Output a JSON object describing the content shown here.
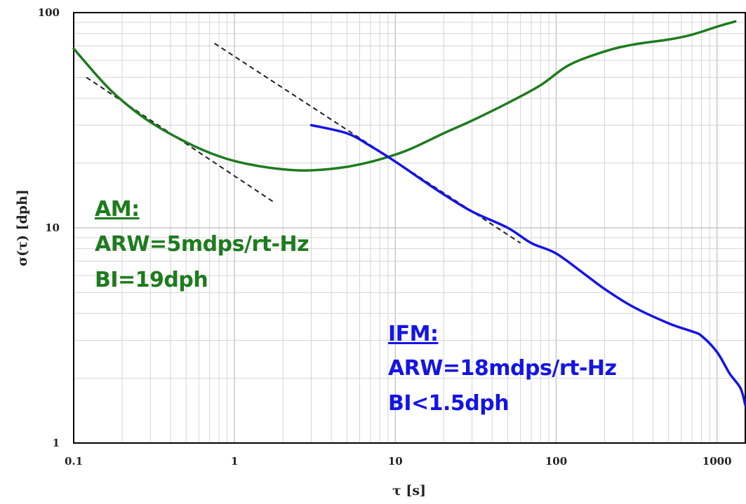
{
  "chart_data": {
    "type": "line",
    "title": "",
    "xlabel": "τ [s]",
    "ylabel": "σ(τ) [dph]",
    "x_scale": "log",
    "y_scale": "log",
    "xlim": [
      0.1,
      1500
    ],
    "ylim": [
      1,
      100
    ],
    "grid": true,
    "x_tick_labels": [
      "0.1",
      "1",
      "10",
      "100",
      "1000"
    ],
    "y_tick_labels": [
      "1",
      "10",
      "100"
    ],
    "colors": {
      "AM": "#1e7b1e",
      "IFM": "#1414e6",
      "fit": "#222222"
    },
    "series": [
      {
        "name": "AM",
        "x": [
          0.1,
          0.15,
          0.2,
          0.3,
          0.5,
          0.8,
          1.2,
          2,
          3,
          5,
          8,
          12,
          20,
          30,
          50,
          80,
          120,
          200,
          300,
          500,
          700,
          1000,
          1300
        ],
        "y": [
          68,
          48,
          39,
          31,
          25,
          21.5,
          19.8,
          18.7,
          18.5,
          19.2,
          20.8,
          23,
          27.5,
          31.5,
          38,
          46,
          57,
          66,
          71,
          75,
          79,
          86,
          91
        ]
      },
      {
        "name": "IFM",
        "x": [
          3,
          5,
          7,
          10,
          15,
          20,
          30,
          50,
          70,
          100,
          150,
          200,
          300,
          500,
          700,
          800,
          1000,
          1200,
          1400,
          1500
        ],
        "y": [
          30,
          27.5,
          24,
          20.3,
          16.5,
          14.3,
          11.9,
          10,
          8.5,
          7.6,
          6.1,
          5.2,
          4.3,
          3.6,
          3.3,
          3.15,
          2.65,
          2.1,
          1.8,
          1.5
        ]
      }
    ],
    "fit_lines": [
      {
        "x": [
          0.12,
          1.8
        ],
        "y": [
          50,
          13
        ]
      },
      {
        "x": [
          0.75,
          60
        ],
        "y": [
          72,
          8.5
        ]
      }
    ],
    "annotations": [
      {
        "lines": [
          "AM:",
          "ARW=5mdps/rt-Hz",
          "BI=19dph"
        ]
      },
      {
        "lines": [
          "IFM:",
          "ARW=18mdps/rt-Hz",
          "BI<1.5dph"
        ]
      }
    ]
  }
}
